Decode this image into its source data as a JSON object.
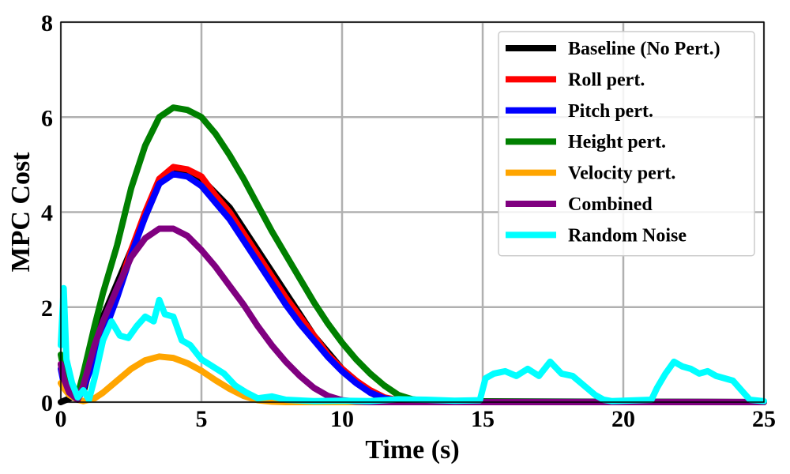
{
  "chart_data": {
    "type": "line",
    "title": "",
    "xlabel": "Time (s)",
    "ylabel": "MPC Cost",
    "xlim": [
      0,
      25
    ],
    "ylim": [
      0,
      8
    ],
    "xticks": [
      0,
      5,
      10,
      15,
      20,
      25
    ],
    "yticks": [
      0,
      2,
      4,
      6,
      8
    ],
    "grid": true,
    "legend_position": "top-right",
    "series": [
      {
        "name": "Baseline (No Pert.)",
        "color": "#000000",
        "x": [
          0,
          0.8,
          1.5,
          2.5,
          3.5,
          4,
          5,
          6,
          7,
          8,
          9,
          10,
          11,
          11.5,
          12,
          25
        ],
        "y": [
          0,
          0.2,
          1.8,
          3.2,
          4.6,
          4.9,
          4.7,
          4.1,
          3.2,
          2.3,
          1.4,
          0.7,
          0.2,
          0.06,
          0.02,
          0
        ]
      },
      {
        "name": "Roll pert.",
        "color": "#ff0000",
        "x": [
          0,
          0.1,
          0.3,
          0.6,
          0.8,
          1.2,
          1.5,
          2,
          2.5,
          3,
          3.5,
          4,
          4.5,
          5,
          5.5,
          6,
          6.5,
          7,
          7.5,
          8,
          8.5,
          9,
          9.5,
          10,
          10.5,
          11,
          11.5,
          12,
          13,
          25
        ],
        "y": [
          0.8,
          0.5,
          0.2,
          0.05,
          0.3,
          1.0,
          1.5,
          2.3,
          3.2,
          4.0,
          4.7,
          4.95,
          4.9,
          4.75,
          4.35,
          4.0,
          3.55,
          3.1,
          2.65,
          2.2,
          1.8,
          1.4,
          1.0,
          0.7,
          0.45,
          0.25,
          0.1,
          0.04,
          0.01,
          0
        ]
      },
      {
        "name": "Pitch pert.",
        "color": "#0000ff",
        "x": [
          0,
          0.1,
          0.3,
          0.6,
          0.8,
          1.2,
          1.5,
          2,
          2.5,
          3,
          3.5,
          4,
          4.5,
          5,
          5.5,
          6,
          6.5,
          7,
          7.5,
          8,
          8.5,
          9,
          9.5,
          10,
          10.5,
          11,
          11.5,
          12,
          13,
          25
        ],
        "y": [
          0.7,
          0.4,
          0.15,
          0.05,
          0.3,
          0.9,
          1.4,
          2.2,
          3.1,
          3.9,
          4.6,
          4.8,
          4.75,
          4.55,
          4.2,
          3.85,
          3.4,
          2.95,
          2.5,
          2.05,
          1.65,
          1.3,
          0.95,
          0.65,
          0.4,
          0.2,
          0.08,
          0.03,
          0.01,
          0
        ]
      },
      {
        "name": "Height pert.",
        "color": "#008000",
        "x": [
          0,
          0.1,
          0.3,
          0.6,
          0.8,
          1.2,
          1.5,
          2,
          2.5,
          3,
          3.5,
          4,
          4.5,
          5,
          5.5,
          6,
          6.5,
          7,
          7.5,
          8,
          8.5,
          9,
          9.5,
          10,
          10.5,
          11,
          11.5,
          12,
          12.5,
          13,
          14,
          25
        ],
        "y": [
          1.0,
          0.7,
          0.4,
          0.15,
          0.6,
          1.6,
          2.3,
          3.3,
          4.5,
          5.4,
          6.0,
          6.2,
          6.15,
          6.0,
          5.65,
          5.2,
          4.7,
          4.15,
          3.6,
          3.1,
          2.6,
          2.1,
          1.65,
          1.25,
          0.9,
          0.6,
          0.35,
          0.15,
          0.06,
          0.02,
          0.01,
          0
        ]
      },
      {
        "name": "Velocity pert.",
        "color": "#ffa500",
        "x": [
          0,
          0.1,
          0.3,
          0.6,
          0.8,
          1.2,
          1.5,
          2,
          2.5,
          3,
          3.5,
          4,
          4.5,
          5,
          5.5,
          6,
          6.5,
          7,
          7.5,
          8,
          25
        ],
        "y": [
          0.4,
          0.3,
          0.15,
          0.05,
          0.02,
          0.08,
          0.2,
          0.45,
          0.7,
          0.88,
          0.96,
          0.93,
          0.82,
          0.66,
          0.46,
          0.28,
          0.13,
          0.04,
          0.01,
          0,
          0
        ]
      },
      {
        "name": "Combined",
        "color": "#800080",
        "x": [
          0,
          0.1,
          0.3,
          0.6,
          0.8,
          1.2,
          1.5,
          2,
          2.5,
          3,
          3.5,
          4,
          4.5,
          5,
          5.5,
          6,
          6.5,
          7,
          7.5,
          8,
          8.5,
          9,
          9.5,
          10,
          10.5,
          11,
          25
        ],
        "y": [
          0.8,
          0.5,
          0.2,
          0.05,
          0.35,
          1.2,
          1.7,
          2.4,
          3.05,
          3.45,
          3.65,
          3.65,
          3.5,
          3.2,
          2.85,
          2.45,
          2.05,
          1.6,
          1.2,
          0.85,
          0.55,
          0.3,
          0.13,
          0.04,
          0.01,
          0,
          0
        ]
      },
      {
        "name": "Random Noise",
        "color": "#00ffff",
        "x": [
          0,
          0.1,
          0.2,
          0.4,
          0.6,
          0.8,
          1.0,
          1.2,
          1.5,
          1.8,
          2.1,
          2.4,
          2.7,
          3.0,
          3.3,
          3.5,
          3.7,
          4.0,
          4.3,
          4.6,
          5.0,
          5.4,
          5.8,
          6.2,
          6.6,
          7.0,
          7.5,
          8,
          9,
          10,
          11,
          12,
          13,
          14,
          14.9,
          15.1,
          15.4,
          15.8,
          16.2,
          16.6,
          17.0,
          17.4,
          17.8,
          18.2,
          18.6,
          19.0,
          19.3,
          19.6,
          20,
          21,
          21.2,
          21.5,
          21.8,
          22.1,
          22.4,
          22.7,
          23.0,
          23.3,
          23.6,
          23.9,
          24.2,
          24.5,
          25
        ],
        "y": [
          1.2,
          2.4,
          0.9,
          0.4,
          0.1,
          0.25,
          0.05,
          0.5,
          1.3,
          1.7,
          1.4,
          1.35,
          1.6,
          1.8,
          1.7,
          2.15,
          1.85,
          1.8,
          1.3,
          1.2,
          0.9,
          0.75,
          0.6,
          0.35,
          0.2,
          0.08,
          0.12,
          0.05,
          0.02,
          0.03,
          0.02,
          0.06,
          0.05,
          0.03,
          0.04,
          0.5,
          0.6,
          0.65,
          0.55,
          0.7,
          0.55,
          0.85,
          0.6,
          0.55,
          0.35,
          0.15,
          0.05,
          0.02,
          0.03,
          0.05,
          0.3,
          0.6,
          0.85,
          0.75,
          0.7,
          0.6,
          0.65,
          0.55,
          0.5,
          0.45,
          0.25,
          0.05,
          0.02
        ]
      }
    ]
  }
}
